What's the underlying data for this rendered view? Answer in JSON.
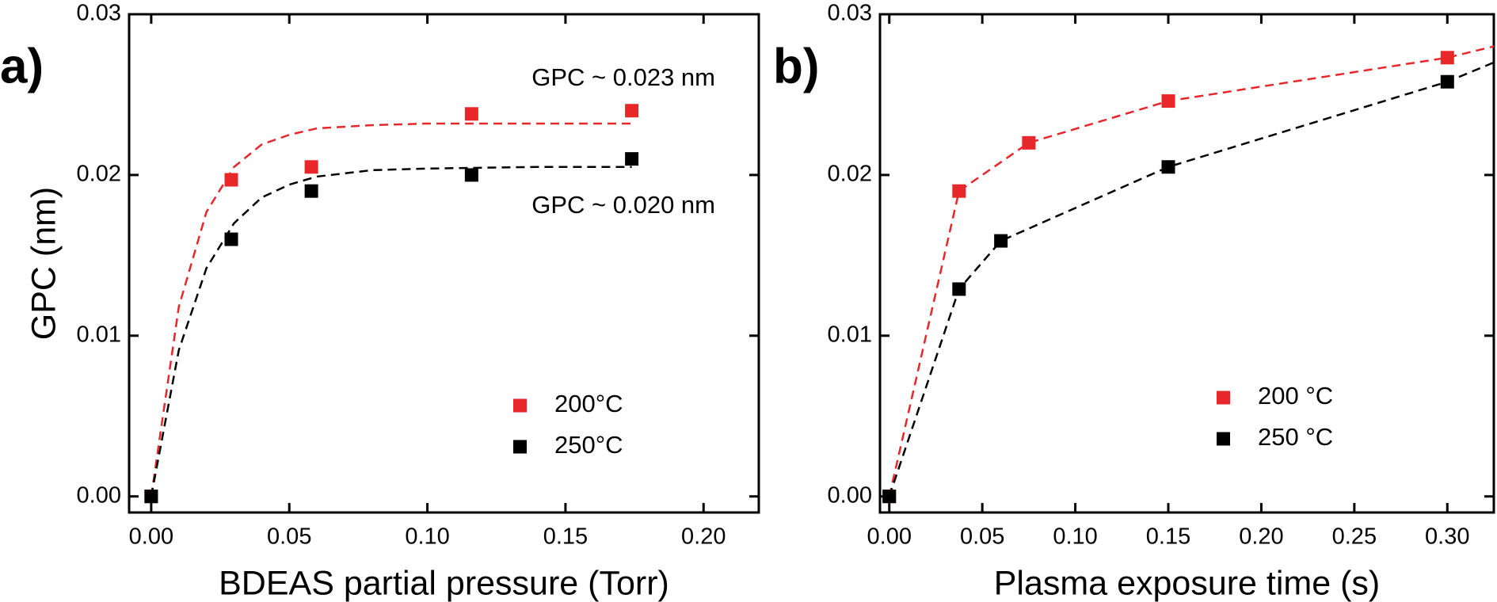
{
  "chart_data": [
    {
      "type": "scatter",
      "panel_label": "a)",
      "xlabel": "BDEAS partial pressure (Torr)",
      "ylabel": "GPC (nm)",
      "xlim": [
        -0.008,
        0.22
      ],
      "ylim": [
        -0.001,
        0.03
      ],
      "xticks": [
        {
          "value": 0,
          "label": "0.00"
        },
        {
          "value": 0.05,
          "label": "0.05"
        },
        {
          "value": 0.1,
          "label": "0.10"
        },
        {
          "value": 0.15,
          "label": "0.15"
        },
        {
          "value": 0.2,
          "label": "0.20"
        }
      ],
      "yticks": [
        {
          "value": 0,
          "label": "0.00"
        },
        {
          "value": 0.01,
          "label": "0.01"
        },
        {
          "value": 0.02,
          "label": "0.02"
        },
        {
          "value": 0.03,
          "label": "0.03"
        }
      ],
      "legend": "lower right",
      "annotations": [
        "GPC ~ 0.023 nm",
        "GPC ~ 0.020 nm"
      ],
      "series": [
        {
          "name": "200°C",
          "color": "#e8272a",
          "x": [
            0,
            0.029,
            0.058,
            0.116,
            0.174
          ],
          "values": [
            0,
            0.0197,
            0.0205,
            0.0238,
            0.024
          ],
          "fit_x": [
            0,
            0.01,
            0.02,
            0.03,
            0.04,
            0.05,
            0.06,
            0.08,
            0.1,
            0.14,
            0.174
          ],
          "fit_values": [
            0,
            0.0118,
            0.0177,
            0.0205,
            0.0219,
            0.0225,
            0.0229,
            0.0231,
            0.0232,
            0.0232,
            0.0232
          ]
        },
        {
          "name": "250°C",
          "color": "#000000",
          "x": [
            0,
            0.029,
            0.058,
            0.116,
            0.174
          ],
          "values": [
            0,
            0.016,
            0.019,
            0.02,
            0.021
          ],
          "fit_x": [
            0,
            0.01,
            0.02,
            0.03,
            0.04,
            0.05,
            0.06,
            0.08,
            0.1,
            0.14,
            0.174
          ],
          "fit_values": [
            0,
            0.0091,
            0.0142,
            0.017,
            0.0186,
            0.0194,
            0.0199,
            0.0203,
            0.0204,
            0.0205,
            0.0205
          ]
        }
      ]
    },
    {
      "type": "scatter",
      "panel_label": "b)",
      "xlabel": "Plasma exposure time (s)",
      "xlim": [
        -0.005,
        0.325
      ],
      "ylim": [
        -0.001,
        0.03
      ],
      "xticks": [
        {
          "value": 0,
          "label": "0.00"
        },
        {
          "value": 0.05,
          "label": "0.05"
        },
        {
          "value": 0.1,
          "label": "0.10"
        },
        {
          "value": 0.15,
          "label": "0.15"
        },
        {
          "value": 0.2,
          "label": "0.20"
        },
        {
          "value": 0.25,
          "label": "0.25"
        },
        {
          "value": 0.3,
          "label": "0.30"
        }
      ],
      "yticks": [
        {
          "value": 0,
          "label": "0.00"
        },
        {
          "value": 0.01,
          "label": "0.01"
        },
        {
          "value": 0.02,
          "label": "0.02"
        },
        {
          "value": 0.03,
          "label": "0.03"
        }
      ],
      "legend": "lower right",
      "series": [
        {
          "name": "200 °C",
          "color": "#e8272a",
          "x": [
            0,
            0.0375,
            0.075,
            0.15,
            0.3
          ],
          "values": [
            0,
            0.019,
            0.022,
            0.0246,
            0.0273
          ],
          "fit_x": [
            0,
            0.0375,
            0.075,
            0.15,
            0.3,
            0.325
          ],
          "fit_values": [
            0,
            0.019,
            0.022,
            0.0246,
            0.0273,
            0.028
          ]
        },
        {
          "name": "250 °C",
          "color": "#000000",
          "x": [
            0,
            0.0375,
            0.06,
            0.15,
            0.3
          ],
          "values": [
            0,
            0.0129,
            0.0159,
            0.0205,
            0.0258
          ],
          "fit_x": [
            0,
            0.0375,
            0.06,
            0.15,
            0.3,
            0.325
          ],
          "fit_values": [
            0,
            0.0129,
            0.0159,
            0.0205,
            0.0258,
            0.027
          ]
        }
      ]
    }
  ]
}
